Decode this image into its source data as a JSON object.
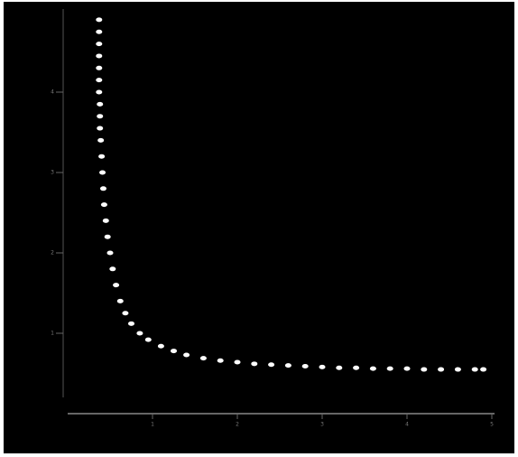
{
  "chart_data": {
    "type": "scatter",
    "color": "#ffffff",
    "x": [
      0.37,
      0.37,
      0.37,
      0.37,
      0.37,
      0.37,
      0.37,
      0.38,
      0.38,
      0.38,
      0.39,
      0.4,
      0.41,
      0.42,
      0.43,
      0.45,
      0.47,
      0.5,
      0.53,
      0.57,
      0.62,
      0.68,
      0.75,
      0.85,
      0.95,
      1.1,
      1.25,
      1.4,
      1.6,
      1.8,
      2.0,
      2.2,
      2.4,
      2.6,
      2.8,
      3.0,
      3.2,
      3.4,
      3.6,
      3.8,
      4.0,
      4.2,
      4.4,
      4.6,
      4.8,
      4.9
    ],
    "values": [
      4.9,
      4.75,
      4.6,
      4.45,
      4.3,
      4.15,
      4.0,
      3.85,
      3.7,
      3.55,
      3.4,
      3.2,
      3.0,
      2.8,
      2.6,
      2.4,
      2.2,
      2.0,
      1.8,
      1.6,
      1.4,
      1.25,
      1.12,
      1.0,
      0.92,
      0.84,
      0.78,
      0.73,
      0.69,
      0.66,
      0.64,
      0.62,
      0.61,
      0.6,
      0.59,
      0.58,
      0.57,
      0.57,
      0.56,
      0.56,
      0.56,
      0.55,
      0.55,
      0.55,
      0.55,
      0.55
    ],
    "xlim": [
      0,
      5
    ],
    "ylim": [
      0,
      5
    ],
    "xticks": [
      1,
      2,
      3,
      4,
      5
    ],
    "yticks": [
      1,
      2,
      3,
      4
    ]
  }
}
